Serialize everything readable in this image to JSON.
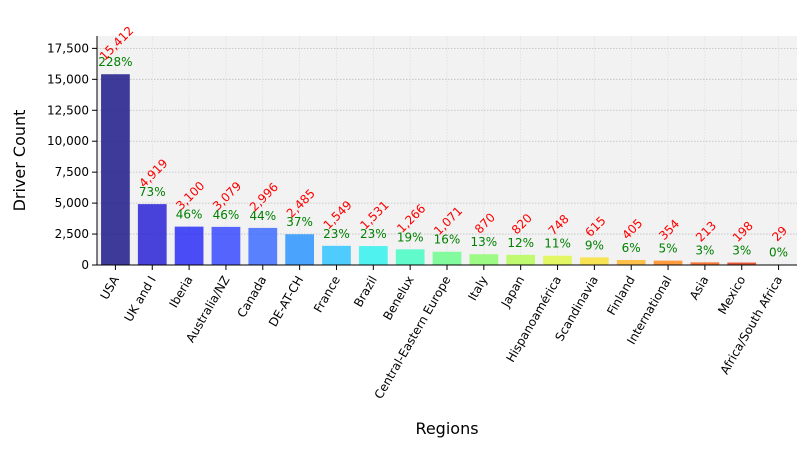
{
  "chart_data": {
    "type": "bar",
    "xlabel": "Regions",
    "ylabel": "Driver Count",
    "ylim": [
      0,
      18500
    ],
    "yticks": [
      0,
      2500,
      5000,
      7500,
      10000,
      12500,
      15000,
      17500
    ],
    "ytick_labels": [
      "0",
      "2,500",
      "5,000",
      "7,500",
      "10,000",
      "12,500",
      "15,000",
      "17,500"
    ],
    "grid": true,
    "categories": [
      "USA",
      "UK and I",
      "Iberia",
      "Australia/NZ",
      "Canada",
      "DE-AT-CH",
      "France",
      "Brazil",
      "Benelux",
      "Central-Eastern Europe",
      "Italy",
      "Japan",
      "Hispanoamérica",
      "Scandinavia",
      "Finland",
      "International",
      "Asia",
      "Mexico",
      "Africa/South Africa"
    ],
    "values": [
      15412,
      4919,
      3100,
      3079,
      2996,
      2485,
      1549,
      1531,
      1266,
      1071,
      870,
      820,
      748,
      615,
      405,
      354,
      213,
      198,
      29
    ],
    "value_labels": [
      "15,412",
      "4,919",
      "3,100",
      "3,079",
      "2,996",
      "2,485",
      "1,549",
      "1,531",
      "1,266",
      "1,071",
      "870",
      "820",
      "748",
      "615",
      "405",
      "354",
      "213",
      "198",
      "29"
    ],
    "percent_labels": [
      "228%",
      "73%",
      "46%",
      "46%",
      "44%",
      "37%",
      "23%",
      "23%",
      "19%",
      "16%",
      "13%",
      "12%",
      "11%",
      "9%",
      "6%",
      "5%",
      "3%",
      "3%",
      "0%"
    ],
    "colors": [
      "#1f1a8a",
      "#2a22d6",
      "#2d2ff7",
      "#3a4bff",
      "#3e6cff",
      "#2d96ff",
      "#33c6ff",
      "#34f2f0",
      "#47fcc4",
      "#6efc8f",
      "#8efc72",
      "#b6fc5a",
      "#dff84a",
      "#f9e03a",
      "#ffb72e",
      "#ff8c22",
      "#f8621b",
      "#e33b17",
      "#c01e12"
    ],
    "count_label_color": "#ff0000",
    "percent_label_color": "#008000",
    "plot_background": "#f2f2f2"
  }
}
